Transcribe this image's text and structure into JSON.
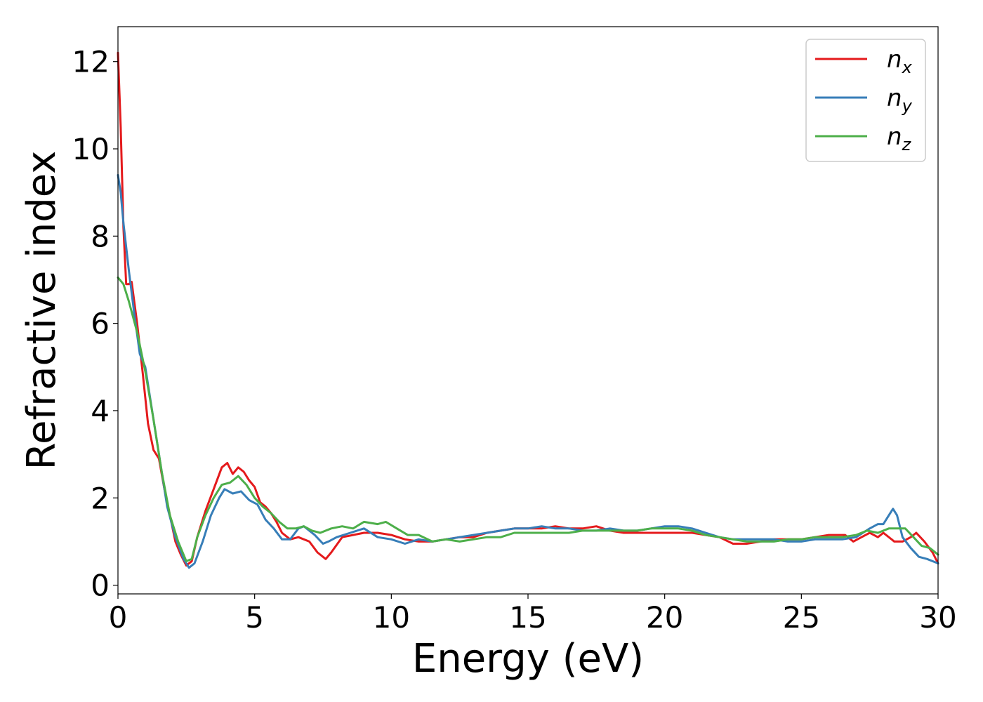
{
  "chart_data": {
    "type": "line",
    "xlabel": "Energy (eV)",
    "ylabel": "Refractive index",
    "xlim": [
      0,
      30
    ],
    "ylim": [
      -0.2,
      12.8
    ],
    "xticks": [
      0,
      5,
      10,
      15,
      20,
      25,
      30
    ],
    "yticks": [
      0,
      2,
      4,
      6,
      8,
      10,
      12
    ],
    "grid": false,
    "legend_position": "top-right",
    "series": [
      {
        "name": "n_x",
        "label_main": "n",
        "label_sub": "x",
        "color": "#e41a1c",
        "x": [
          0,
          0.1,
          0.2,
          0.3,
          0.4,
          0.5,
          0.7,
          0.9,
          1.1,
          1.3,
          1.5,
          1.7,
          1.9,
          2.1,
          2.3,
          2.5,
          2.7,
          2.9,
          3.2,
          3.5,
          3.8,
          4.0,
          4.2,
          4.4,
          4.6,
          4.8,
          5.0,
          5.2,
          5.4,
          5.6,
          5.8,
          6.0,
          6.3,
          6.6,
          7.0,
          7.3,
          7.6,
          7.8,
          8.2,
          8.6,
          9.0,
          9.5,
          10.0,
          10.5,
          11.0,
          11.5,
          12.0,
          12.5,
          13.0,
          13.5,
          14.0,
          14.5,
          15.0,
          15.5,
          16.0,
          16.5,
          17.0,
          17.5,
          18.0,
          18.5,
          19.0,
          19.5,
          20.0,
          20.5,
          21.0,
          21.5,
          22.0,
          22.5,
          23.0,
          23.5,
          24.0,
          24.5,
          25.0,
          25.5,
          26.0,
          26.3,
          26.6,
          26.9,
          27.2,
          27.5,
          27.8,
          28.0,
          28.4,
          28.7,
          29.0,
          29.2,
          29.5,
          29.8,
          30.0
        ],
        "values": [
          12.2,
          10.5,
          8.2,
          6.9,
          6.9,
          6.95,
          6.0,
          4.9,
          3.7,
          3.1,
          2.9,
          2.2,
          1.6,
          1.0,
          0.7,
          0.45,
          0.55,
          1.1,
          1.7,
          2.2,
          2.7,
          2.8,
          2.55,
          2.7,
          2.6,
          2.4,
          2.25,
          1.9,
          1.8,
          1.65,
          1.45,
          1.2,
          1.05,
          1.1,
          1.0,
          0.75,
          0.6,
          0.75,
          1.1,
          1.15,
          1.2,
          1.2,
          1.15,
          1.05,
          1.0,
          1.0,
          1.05,
          1.1,
          1.1,
          1.2,
          1.25,
          1.3,
          1.3,
          1.3,
          1.35,
          1.3,
          1.3,
          1.35,
          1.25,
          1.2,
          1.2,
          1.2,
          1.2,
          1.2,
          1.2,
          1.15,
          1.1,
          0.95,
          0.95,
          1.0,
          1.05,
          1.05,
          1.05,
          1.1,
          1.15,
          1.15,
          1.15,
          1.0,
          1.1,
          1.2,
          1.1,
          1.2,
          1.0,
          1.0,
          1.1,
          1.2,
          1.0,
          0.75,
          0.5
        ]
      },
      {
        "name": "n_y",
        "label_main": "n",
        "label_sub": "y",
        "color": "#377eb8",
        "x": [
          0,
          0.1,
          0.2,
          0.4,
          0.6,
          0.8,
          1.0,
          1.2,
          1.5,
          1.8,
          2.1,
          2.4,
          2.6,
          2.8,
          3.1,
          3.4,
          3.7,
          3.9,
          4.2,
          4.5,
          4.8,
          5.1,
          5.4,
          5.7,
          6.0,
          6.3,
          6.6,
          6.8,
          7.2,
          7.5,
          7.7,
          8.0,
          8.5,
          9.0,
          9.5,
          10.0,
          10.5,
          11.0,
          11.5,
          12.0,
          12.5,
          13.0,
          13.5,
          14.0,
          14.5,
          15.0,
          15.5,
          16.0,
          16.5,
          17.0,
          17.5,
          18.0,
          18.5,
          19.0,
          19.5,
          20.0,
          20.5,
          21.0,
          21.5,
          22.0,
          22.5,
          23.0,
          23.5,
          24.0,
          24.5,
          25.0,
          25.5,
          26.0,
          26.5,
          27.0,
          27.5,
          27.8,
          28.0,
          28.2,
          28.35,
          28.5,
          28.7,
          29.0,
          29.3,
          29.6,
          30.0
        ],
        "values": [
          9.4,
          9.0,
          8.3,
          7.2,
          6.2,
          5.3,
          5.0,
          4.2,
          3.0,
          1.8,
          1.1,
          0.6,
          0.4,
          0.5,
          1.0,
          1.6,
          2.0,
          2.2,
          2.1,
          2.15,
          1.95,
          1.85,
          1.5,
          1.3,
          1.05,
          1.05,
          1.3,
          1.35,
          1.15,
          0.95,
          1.0,
          1.1,
          1.2,
          1.3,
          1.1,
          1.05,
          0.95,
          1.05,
          1.0,
          1.05,
          1.1,
          1.15,
          1.2,
          1.25,
          1.3,
          1.3,
          1.35,
          1.3,
          1.3,
          1.25,
          1.25,
          1.3,
          1.25,
          1.25,
          1.3,
          1.35,
          1.35,
          1.3,
          1.2,
          1.1,
          1.05,
          1.05,
          1.05,
          1.05,
          1.0,
          1.0,
          1.05,
          1.05,
          1.05,
          1.1,
          1.3,
          1.4,
          1.4,
          1.6,
          1.75,
          1.6,
          1.1,
          0.85,
          0.65,
          0.6,
          0.5
        ]
      },
      {
        "name": "n_z",
        "label_main": "n",
        "label_sub": "z",
        "color": "#4daf4a",
        "x": [
          0,
          0.2,
          0.4,
          0.7,
          1.0,
          1.3,
          1.6,
          1.9,
          2.2,
          2.5,
          2.7,
          2.9,
          3.2,
          3.5,
          3.8,
          4.1,
          4.4,
          4.7,
          5.0,
          5.3,
          5.6,
          5.9,
          6.2,
          6.5,
          6.8,
          7.1,
          7.4,
          7.8,
          8.2,
          8.6,
          9.0,
          9.5,
          9.8,
          10.2,
          10.6,
          11.0,
          11.5,
          12.0,
          12.5,
          13.0,
          13.5,
          14.0,
          14.5,
          15.0,
          15.5,
          16.0,
          16.5,
          17.0,
          17.5,
          18.0,
          18.5,
          19.0,
          19.5,
          20.0,
          20.5,
          21.0,
          21.5,
          22.0,
          22.5,
          23.0,
          23.5,
          24.0,
          24.5,
          25.0,
          25.5,
          26.0,
          26.5,
          27.0,
          27.4,
          27.8,
          28.2,
          28.5,
          28.8,
          29.1,
          29.4,
          29.7,
          30.0
        ],
        "values": [
          7.05,
          6.9,
          6.5,
          5.8,
          4.9,
          3.8,
          2.6,
          1.6,
          1.0,
          0.55,
          0.6,
          1.1,
          1.6,
          2.0,
          2.3,
          2.35,
          2.5,
          2.3,
          2.0,
          1.8,
          1.65,
          1.45,
          1.3,
          1.3,
          1.35,
          1.25,
          1.2,
          1.3,
          1.35,
          1.3,
          1.45,
          1.4,
          1.45,
          1.3,
          1.15,
          1.15,
          1.0,
          1.05,
          1.0,
          1.05,
          1.1,
          1.1,
          1.2,
          1.2,
          1.2,
          1.2,
          1.2,
          1.25,
          1.25,
          1.25,
          1.25,
          1.25,
          1.3,
          1.3,
          1.3,
          1.25,
          1.15,
          1.1,
          1.05,
          1.0,
          1.0,
          1.0,
          1.05,
          1.05,
          1.1,
          1.1,
          1.1,
          1.15,
          1.25,
          1.2,
          1.3,
          1.3,
          1.3,
          1.1,
          0.9,
          0.85,
          0.7
        ]
      }
    ]
  }
}
